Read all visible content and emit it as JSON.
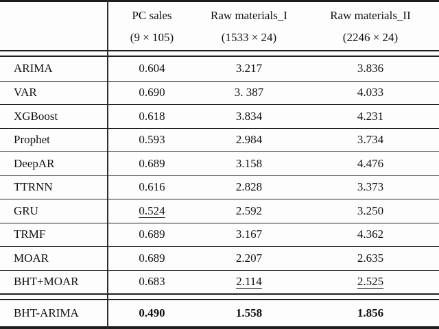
{
  "colors": {
    "background": "#fdfdfd",
    "line": "#1e1e1e",
    "text": "#101010"
  },
  "table": {
    "header": {
      "columns": [
        {
          "label": "PC sales",
          "dims": "(9 × 105)"
        },
        {
          "label": "Raw materials_I",
          "dims": "(1533 × 24)"
        },
        {
          "label": "Raw materials_II",
          "dims": "(2246 × 24)"
        }
      ]
    },
    "rows": [
      {
        "model": "ARIMA",
        "values": [
          {
            "text": "0.604",
            "style": ""
          },
          {
            "text": "3.217",
            "style": ""
          },
          {
            "text": "3.836",
            "style": ""
          }
        ]
      },
      {
        "model": "VAR",
        "values": [
          {
            "text": "0.690",
            "style": ""
          },
          {
            "text": "3. 387",
            "style": ""
          },
          {
            "text": "4.033",
            "style": ""
          }
        ]
      },
      {
        "model": "XGBoost",
        "values": [
          {
            "text": "0.618",
            "style": ""
          },
          {
            "text": "3.834",
            "style": ""
          },
          {
            "text": "4.231",
            "style": ""
          }
        ]
      },
      {
        "model": "Prophet",
        "values": [
          {
            "text": "0.593",
            "style": ""
          },
          {
            "text": "2.984",
            "style": ""
          },
          {
            "text": "3.734",
            "style": ""
          }
        ]
      },
      {
        "model": "DeepAR",
        "values": [
          {
            "text": "0.689",
            "style": ""
          },
          {
            "text": "3.158",
            "style": ""
          },
          {
            "text": "4.476",
            "style": ""
          }
        ]
      },
      {
        "model": "TTRNN",
        "values": [
          {
            "text": "0.616",
            "style": ""
          },
          {
            "text": "2.828",
            "style": ""
          },
          {
            "text": "3.373",
            "style": ""
          }
        ]
      },
      {
        "model": "GRU",
        "values": [
          {
            "text": "0.524",
            "style": "underline"
          },
          {
            "text": "2.592",
            "style": ""
          },
          {
            "text": "3.250",
            "style": ""
          }
        ]
      },
      {
        "model": "TRMF",
        "values": [
          {
            "text": "0.689",
            "style": ""
          },
          {
            "text": "3.167",
            "style": ""
          },
          {
            "text": "4.362",
            "style": ""
          }
        ]
      },
      {
        "model": "MOAR",
        "values": [
          {
            "text": "0.689",
            "style": ""
          },
          {
            "text": "2.207",
            "style": ""
          },
          {
            "text": "2.635",
            "style": ""
          }
        ]
      },
      {
        "model": "BHT+MOAR",
        "values": [
          {
            "text": "0.683",
            "style": ""
          },
          {
            "text": "2.114",
            "style": "underline"
          },
          {
            "text": "2.525",
            "style": "underline"
          }
        ]
      }
    ],
    "footer": {
      "model": "BHT-ARIMA",
      "values": [
        {
          "text": "0.490",
          "style": "bold"
        },
        {
          "text": "1.558",
          "style": "bold"
        },
        {
          "text": "1.856",
          "style": "bold"
        }
      ]
    }
  }
}
